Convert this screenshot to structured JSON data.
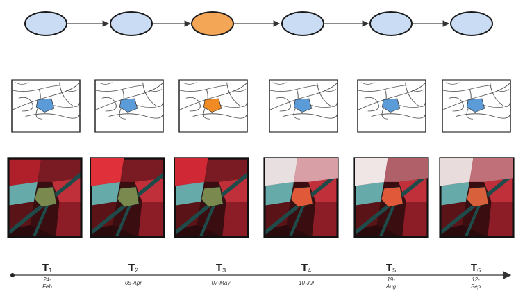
{
  "diagram": {
    "nodes": [
      {
        "id": "n1",
        "highlighted": false
      },
      {
        "id": "n2",
        "highlighted": false
      },
      {
        "id": "n3",
        "highlighted": true
      },
      {
        "id": "n4",
        "highlighted": false
      },
      {
        "id": "n5",
        "highlighted": false
      },
      {
        "id": "n6",
        "highlighted": false
      }
    ],
    "colors": {
      "node_fill": "#c9dcf3",
      "node_highlight": "#f4a657",
      "node_stroke": "#1b1b1b",
      "parcel_blue": "#5b9bd8",
      "parcel_orange": "#f08a24",
      "image_red": "#b0202a",
      "image_cyan": "#6fc7c4",
      "image_green": "#7a8a4e"
    }
  },
  "timeline": {
    "steps": [
      {
        "t": "T",
        "sub": "1",
        "date": [
          "24-",
          "Feb"
        ]
      },
      {
        "t": "T",
        "sub": "2",
        "date": [
          "05-Apr"
        ]
      },
      {
        "t": "T",
        "sub": "3",
        "date": [
          "07-May"
        ]
      },
      {
        "t": "T",
        "sub": "4",
        "date": [
          "10-Jul"
        ]
      },
      {
        "t": "T",
        "sub": "5",
        "date": [
          "19-",
          "Aug"
        ]
      },
      {
        "t": "T",
        "sub": "6",
        "date": [
          "12-",
          "Sep"
        ]
      }
    ]
  }
}
